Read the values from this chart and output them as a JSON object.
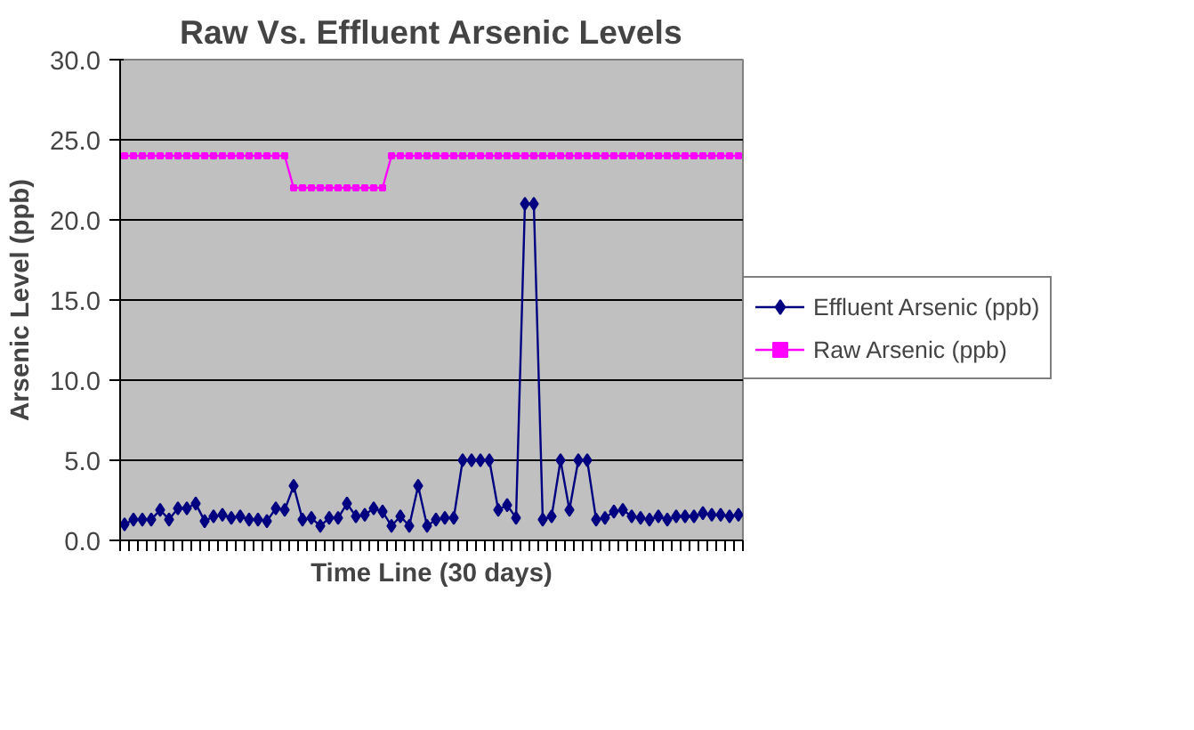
{
  "chart_data": {
    "type": "line",
    "title": "Raw Vs. Effluent Arsenic Levels",
    "xlabel": "Time Line (30 days)",
    "ylabel": "Arsenic Level (ppb)",
    "categories": [
      null,
      null,
      null,
      null,
      null,
      null,
      null,
      null,
      null,
      null,
      null,
      null,
      null,
      null,
      null,
      null,
      null,
      null,
      null,
      null,
      null,
      null,
      null,
      null,
      null,
      null,
      null,
      null,
      null,
      null,
      null,
      null,
      null,
      null,
      null,
      null,
      null,
      null,
      null,
      null,
      null,
      null,
      null,
      null,
      null,
      null,
      null,
      null,
      null,
      null,
      null,
      null,
      null,
      null,
      null,
      null,
      null,
      null,
      null,
      null,
      null,
      null,
      null,
      null,
      null,
      null,
      null,
      null,
      null,
      null
    ],
    "series": [
      {
        "name": "Effluent Arsenic (ppb)",
        "color": "#000080",
        "marker": "diamond",
        "values": [
          1.0,
          1.3,
          1.3,
          1.3,
          1.9,
          1.3,
          2.0,
          2.0,
          2.3,
          1.2,
          1.5,
          1.6,
          1.4,
          1.5,
          1.3,
          1.3,
          1.2,
          2.0,
          1.9,
          3.4,
          1.3,
          1.4,
          0.9,
          1.4,
          1.4,
          2.3,
          1.5,
          1.6,
          2.0,
          1.8,
          0.9,
          1.5,
          0.9,
          3.4,
          0.9,
          1.3,
          1.4,
          1.4,
          5.0,
          5.0,
          5.0,
          5.0,
          1.9,
          2.2,
          1.4,
          21.0,
          21.0,
          1.3,
          1.5,
          5.0,
          1.9,
          5.0,
          5.0,
          1.3,
          1.4,
          1.8,
          1.9,
          1.5,
          1.4,
          1.3,
          1.5,
          1.3,
          1.5,
          1.5,
          1.5,
          1.7,
          1.6,
          1.6,
          1.5,
          1.6
        ]
      },
      {
        "name": "Raw Arsenic (ppb)",
        "color": "#ff00ff",
        "marker": "square",
        "values": [
          24,
          24,
          24,
          24,
          24,
          24,
          24,
          24,
          24,
          24,
          24,
          24,
          24,
          24,
          24,
          24,
          24,
          24,
          24,
          22,
          22,
          22,
          22,
          22,
          22,
          22,
          22,
          22,
          22,
          22,
          24,
          24,
          24,
          24,
          24,
          24,
          24,
          24,
          24,
          24,
          24,
          24,
          24,
          24,
          24,
          24,
          24,
          24,
          24,
          24,
          24,
          24,
          24,
          24,
          24,
          24,
          24,
          24,
          24,
          24,
          24,
          24,
          24,
          24,
          24,
          24,
          24,
          24,
          24,
          24
        ]
      }
    ],
    "ylim": [
      0,
      30
    ],
    "yticks": [
      {
        "value": 0,
        "label": "0.0"
      },
      {
        "value": 5,
        "label": "5.0"
      },
      {
        "value": 10,
        "label": "10.0"
      },
      {
        "value": 15,
        "label": "15.0"
      },
      {
        "value": 20,
        "label": "20.0"
      },
      {
        "value": 25,
        "label": "25.0"
      },
      {
        "value": 30,
        "label": "30.0"
      }
    ],
    "grid": "y",
    "legend": "right",
    "line_style": "solid"
  }
}
